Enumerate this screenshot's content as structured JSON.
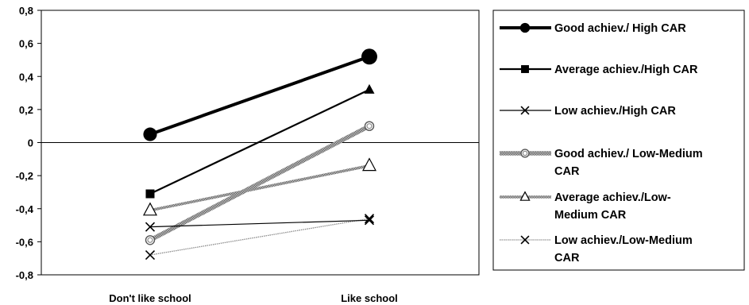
{
  "chart_data": {
    "type": "line",
    "title": "",
    "xlabel": "",
    "ylabel": "",
    "categories": [
      "Don't like school",
      "Like school"
    ],
    "ylim": [
      -0.8,
      0.8
    ],
    "yticks": [
      -0.8,
      -0.6,
      -0.4,
      -0.2,
      0,
      0.2,
      0.4,
      0.6,
      0.8
    ],
    "ytick_labels": [
      "-0,8",
      "-0,6",
      "-0,4",
      "-0,2",
      "0",
      "0,2",
      "0,4",
      "0,6",
      "0,8"
    ],
    "grid": false,
    "legend_position": "right",
    "series": [
      {
        "name": "Good achiev./ High CAR",
        "values": [
          0.05,
          0.52
        ],
        "color": "#000000",
        "style": "thick",
        "marker": "circle-filled",
        "legend_lines": [
          "Good achiev./ High CAR"
        ]
      },
      {
        "name": "Average achiev./High CAR",
        "values": [
          -0.31,
          0.32
        ],
        "color": "#000000",
        "style": "medium",
        "marker": "square-filled+triangle-filled",
        "legend_lines": [
          "Average achiev./High CAR"
        ]
      },
      {
        "name": "Low achiev./High CAR",
        "values": [
          -0.51,
          -0.47
        ],
        "color": "#000000",
        "style": "thin",
        "marker": "x",
        "legend_lines": [
          "Low achiev./High CAR"
        ]
      },
      {
        "name": "Good achiev./ Low-Medium CAR",
        "values": [
          -0.59,
          0.1
        ],
        "color": "#9a9a9a",
        "style": "hatched-thick",
        "marker": "circle-open-double",
        "legend_lines": [
          "Good achiev./ Low-Medium",
          "CAR"
        ]
      },
      {
        "name": "Average achiev./Low-Medium CAR",
        "values": [
          -0.41,
          -0.14
        ],
        "color": "#9a9a9a",
        "style": "hatched-medium",
        "marker": "triangle-open",
        "legend_lines": [
          "Average achiev./Low-",
          "Medium CAR"
        ]
      },
      {
        "name": "Low achiev./Low-Medium CAR",
        "values": [
          -0.68,
          -0.46
        ],
        "color": "#8a8a8a",
        "style": "dotted-thin",
        "marker": "x",
        "legend_lines": [
          "Low achiev./Low-Medium",
          "CAR"
        ]
      }
    ]
  }
}
